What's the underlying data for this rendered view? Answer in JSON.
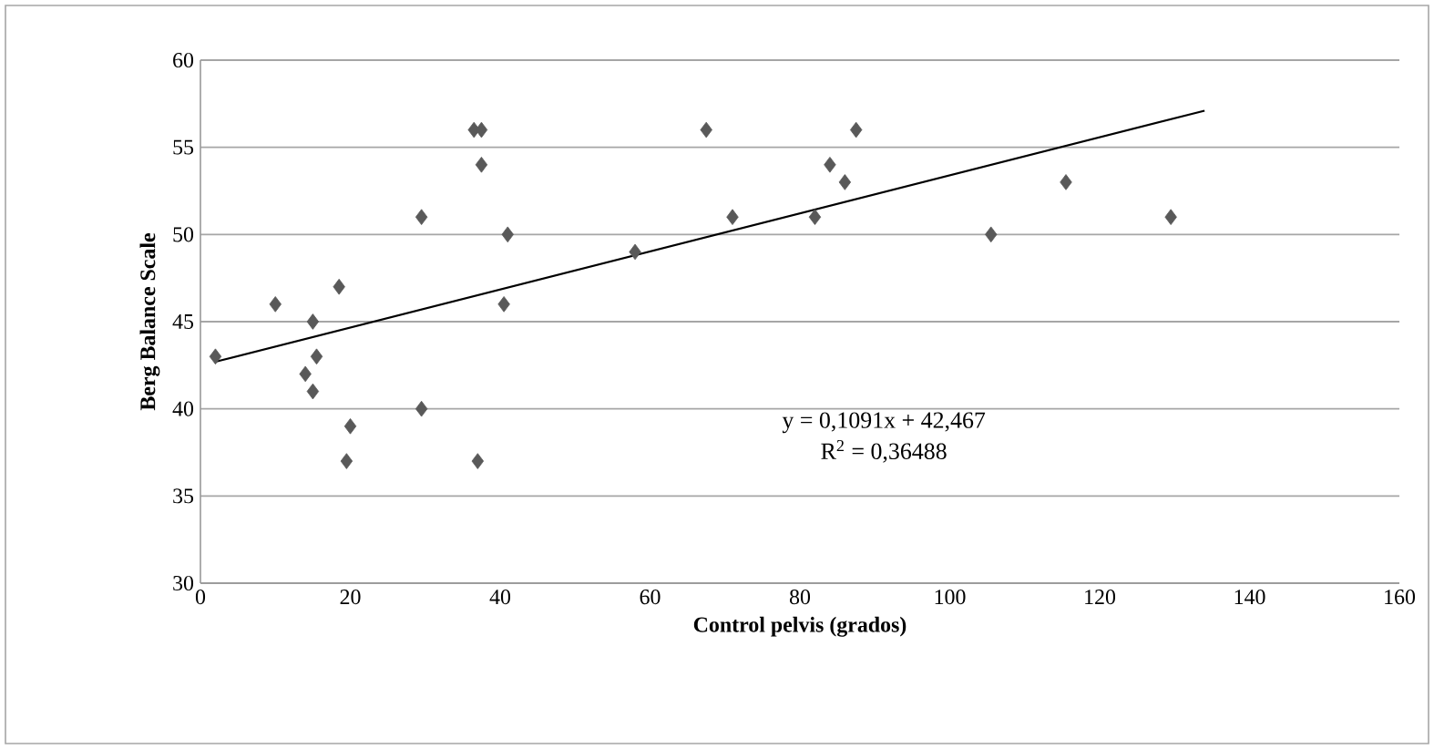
{
  "chart_data": {
    "type": "scatter",
    "xlabel": "Control pelvis  (grados)",
    "ylabel": "Berg Balance Scale",
    "xlim": [
      0,
      160
    ],
    "xticks": [
      0,
      20,
      40,
      60,
      80,
      100,
      120,
      140,
      160
    ],
    "ylim": [
      30,
      60
    ],
    "yticks": [
      30,
      35,
      40,
      45,
      50,
      55,
      60
    ],
    "grid": "y",
    "marker": "diamond",
    "series": [
      {
        "color": "#595959",
        "x": [
          2,
          10,
          14,
          15,
          15,
          15.5,
          18.5,
          20,
          19.5,
          29.5,
          29.5,
          36.5,
          37.5,
          37.5,
          37,
          41,
          40.5,
          58,
          67.5,
          71,
          82,
          84,
          86,
          87.5,
          105.5,
          115.5,
          129.5
        ],
        "values": [
          43,
          46,
          42,
          41,
          45,
          43,
          47,
          39,
          37,
          51,
          40,
          56,
          56,
          54,
          37,
          50,
          46,
          49,
          56,
          51,
          51,
          54,
          53,
          56,
          50,
          53,
          51
        ]
      },
      {
        "type": "line",
        "color": "#000000",
        "marker": "none",
        "x": [
          2,
          134
        ],
        "values": [
          42.7,
          57.1
        ]
      }
    ],
    "annotations": [
      "y = 0,1091x + 42,467",
      "R$^{2}$ = 0,36488"
    ]
  }
}
